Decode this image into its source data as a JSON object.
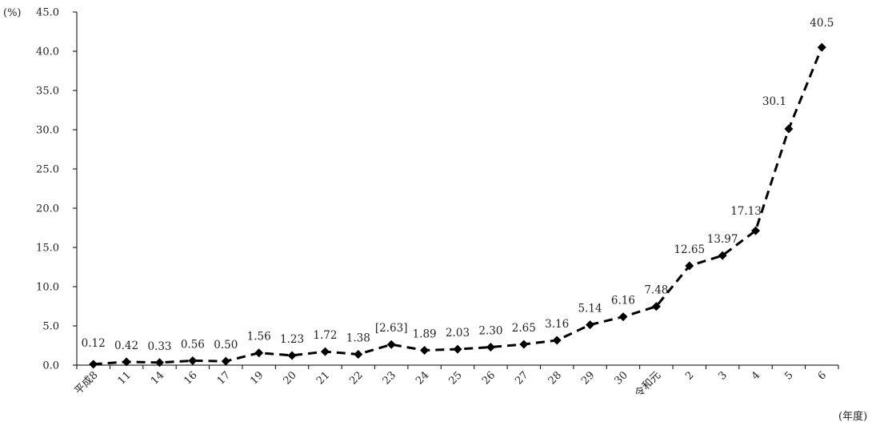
{
  "chart_data": {
    "type": "line",
    "title": "",
    "ylabel": "(%)",
    "xlabel": "(年度)",
    "ylim": [
      0,
      45
    ],
    "yticks": [
      "0.0",
      "5.0",
      "10.0",
      "15.0",
      "20.0",
      "25.0",
      "30.0",
      "35.0",
      "40.0",
      "45.0"
    ],
    "grid": false,
    "legend": "none",
    "line_style": "dashed",
    "marker": "diamond",
    "color": "#000000",
    "categories": [
      "平成8",
      "11",
      "14",
      "16",
      "17",
      "19",
      "20",
      "21",
      "22",
      "23",
      "24",
      "25",
      "26",
      "27",
      "28",
      "29",
      "30",
      "令和元",
      "2",
      "3",
      "4",
      "5",
      "6"
    ],
    "values": [
      0.12,
      0.42,
      0.33,
      0.56,
      0.5,
      1.56,
      1.23,
      1.72,
      1.38,
      2.63,
      1.89,
      2.03,
      2.3,
      2.65,
      3.16,
      5.14,
      6.16,
      7.48,
      12.65,
      13.97,
      17.13,
      30.1,
      40.5
    ],
    "data_labels": [
      "0.12",
      "0.42",
      "0.33",
      "0.56",
      "0.50",
      "1.56",
      "1.23",
      "1.72",
      "1.38",
      "[2.63]",
      "1.89",
      "2.03",
      "2.30",
      "2.65",
      "3.16",
      "5.14",
      "6.16",
      "7.48",
      "12.65",
      "13.97",
      "17.13",
      "30.1",
      "40.5"
    ]
  }
}
